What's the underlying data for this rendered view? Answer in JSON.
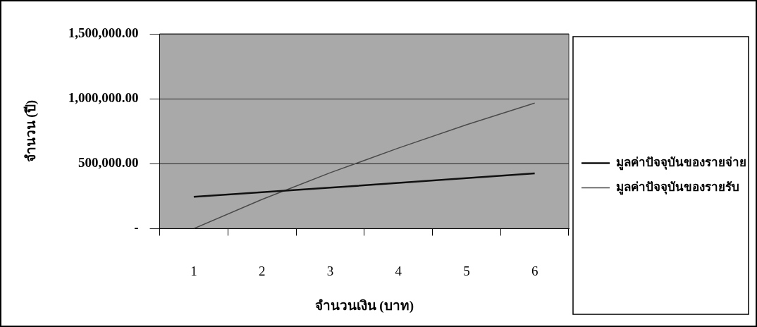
{
  "chart_data": {
    "type": "line",
    "xlabel": "จำนวนเงิน (บาท)",
    "ylabel": "จำนวน (ปี)",
    "categories": [
      "1",
      "2",
      "3",
      "4",
      "5",
      "6"
    ],
    "series": [
      {
        "name": "มูลค่าปัจจุบันของรายจ่าย",
        "color": "#111111",
        "values": [
          245000,
          280000,
          315000,
          352000,
          389000,
          426000
        ]
      },
      {
        "name": "มูลค่าปัจจุบันของรายรับ",
        "color": "#4a4a4a",
        "values": [
          0,
          225000,
          430000,
          620000,
          800000,
          967000
        ]
      }
    ],
    "ylim": [
      0,
      1500000
    ],
    "yticks": [
      {
        "value": 0,
        "label": "-"
      },
      {
        "value": 500000,
        "label": "500,000.00"
      },
      {
        "value": 1000000,
        "label": "1,000,000.00"
      },
      {
        "value": 1500000,
        "label": "1,500,000.00"
      }
    ],
    "grid": "y",
    "legend": "right",
    "marker": "none",
    "line_style": "solid"
  }
}
